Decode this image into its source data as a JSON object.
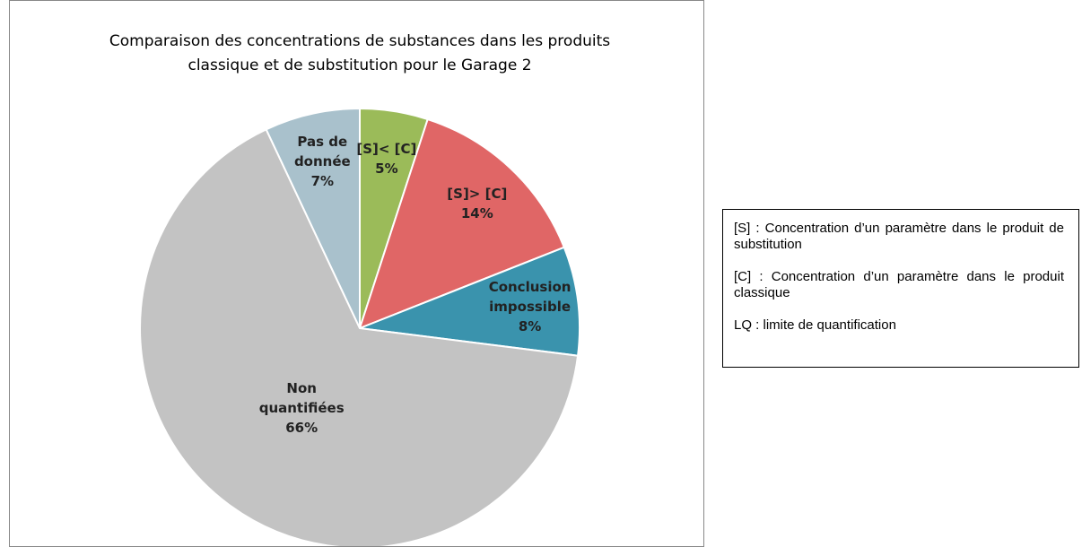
{
  "chart_data": {
    "type": "pie",
    "title": "Comparaison des concentrations de substances dans les produits classique et de substitution pour le Garage 2",
    "categories": [
      "[S]< [C]",
      "[S]> [C]",
      "Conclusion impossible",
      "Non quantifiées",
      "Pas de donnée"
    ],
    "values": [
      5,
      14,
      8,
      66,
      7
    ],
    "value_labels": [
      "5%",
      "14%",
      "8%",
      "66%",
      "7%"
    ],
    "colors": [
      "#9bbb59",
      "#e06666",
      "#3a93ad",
      "#c3c3c3",
      "#a9c1cc"
    ]
  },
  "notes": [
    "[S] : Concentration d’un paramètre dans le produit de substitution",
    "[C] : Concentration d’un paramètre dans le produit classique",
    "LQ : limite de quantification"
  ]
}
